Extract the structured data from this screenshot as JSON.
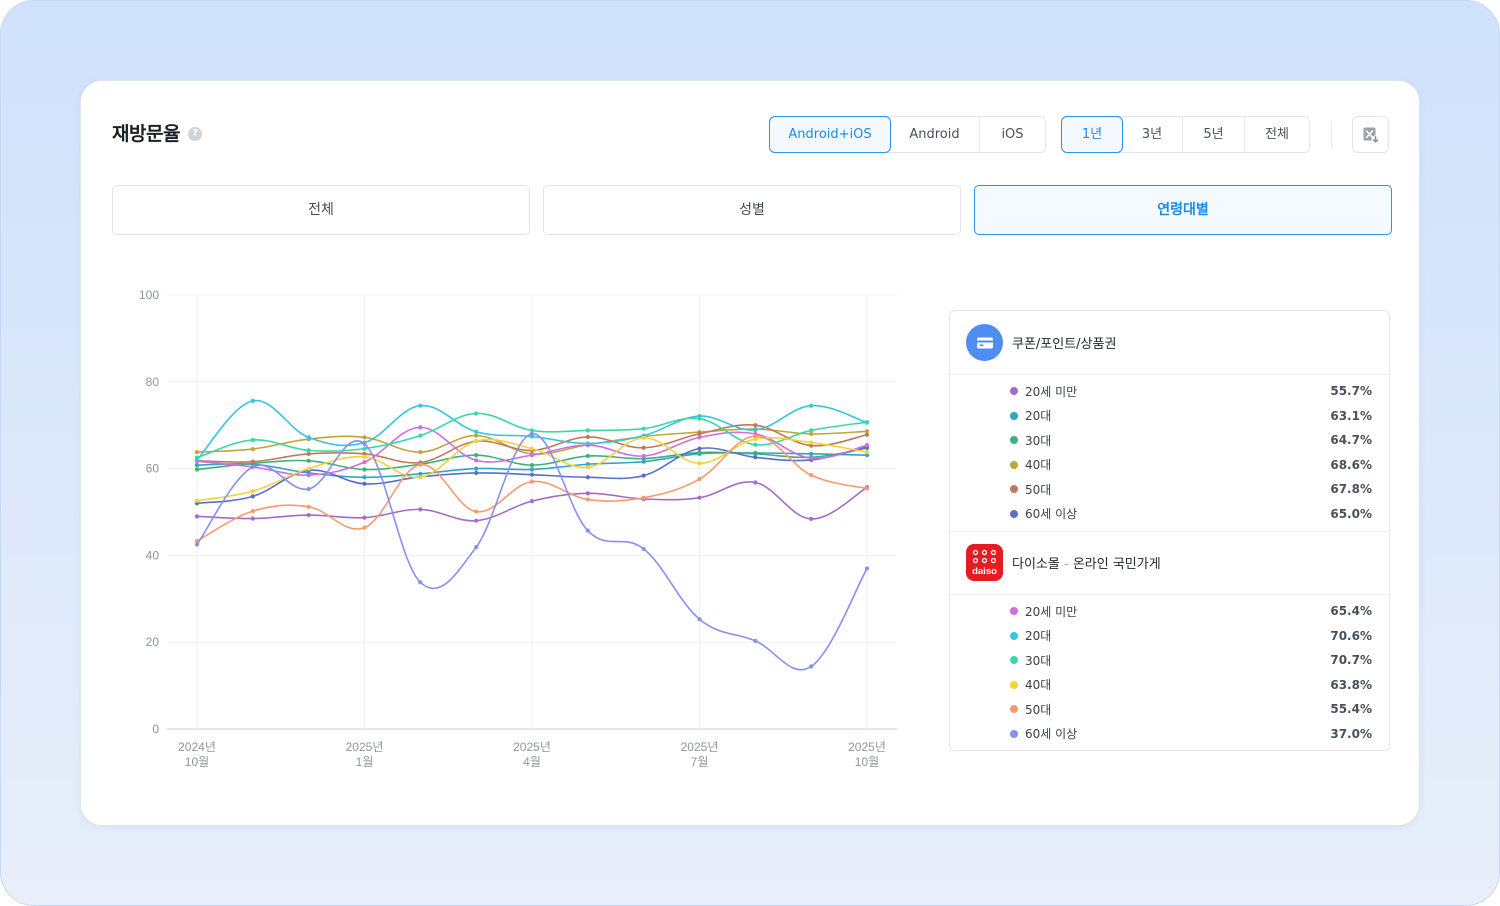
{
  "title": "재방문율",
  "help_glyph": "?",
  "platform_options": [
    "Android+iOS",
    "Android",
    "iOS"
  ],
  "period_options": [
    "1년",
    "3년",
    "5년",
    "전체"
  ],
  "tabs": [
    "전체",
    "성별",
    "연령대별"
  ],
  "legend": {
    "apps": [
      {
        "name": "쿠폰/포인트/상품권",
        "icon": "credit-card-icon",
        "rows": [
          {
            "label": "20세 미만",
            "value": "55.7%",
            "color": "#a66ac9"
          },
          {
            "label": "20대",
            "value": "63.1%",
            "color": "#2fa6c4"
          },
          {
            "label": "30대",
            "value": "64.7%",
            "color": "#3fb07c"
          },
          {
            "label": "40대",
            "value": "68.6%",
            "color": "#c2a53a"
          },
          {
            "label": "50대",
            "value": "67.8%",
            "color": "#c0785a"
          },
          {
            "label": "60세 이상",
            "value": "65.0%",
            "color": "#5b6ec9"
          }
        ]
      },
      {
        "name_main": "다이소몰",
        "name_sep": " - ",
        "name_sub": "온라인 국민가게",
        "icon": "daiso-logo-icon",
        "logo_text": "daiso",
        "rows": [
          {
            "label": "20세 미만",
            "value": "65.4%",
            "color": "#d06de3"
          },
          {
            "label": "20대",
            "value": "70.6%",
            "color": "#36c4e0"
          },
          {
            "label": "30대",
            "value": "70.7%",
            "color": "#3ad8a7"
          },
          {
            "label": "40대",
            "value": "63.8%",
            "color": "#f3d23c"
          },
          {
            "label": "50대",
            "value": "55.4%",
            "color": "#f79a6e"
          },
          {
            "label": "60세 이상",
            "value": "37.0%",
            "color": "#8790f0"
          }
        ]
      }
    ]
  },
  "chart_data": {
    "type": "line",
    "x_labels": [
      [
        "2024년",
        "10월"
      ],
      [
        "2025년",
        "1월"
      ],
      [
        "2025년",
        "4월"
      ],
      [
        "2025년",
        "7월"
      ],
      [
        "2025년",
        "10월"
      ]
    ],
    "x_label_index": [
      0,
      3,
      6,
      9,
      12
    ],
    "yticks": [
      0,
      20,
      40,
      60,
      80,
      100
    ],
    "ylim": [
      0,
      100
    ],
    "grid": true,
    "series": [
      {
        "name": "20세 미만",
        "color": "#a66ac9",
        "values": [
          49.0,
          48.5,
          49.3,
          48.7,
          50.6,
          48.0,
          52.5,
          54.3,
          53.0,
          53.3,
          56.8,
          48.4,
          55.7
        ]
      },
      {
        "name": "20대",
        "color": "#2fa6c4",
        "values": [
          60.8,
          61.0,
          59.0,
          58.0,
          58.8,
          60.0,
          59.8,
          61.0,
          61.6,
          63.4,
          63.6,
          63.4,
          63.1
        ]
      },
      {
        "name": "30대",
        "color": "#3fb07c",
        "values": [
          59.8,
          61.2,
          61.8,
          59.8,
          61.0,
          63.1,
          60.8,
          62.9,
          62.3,
          63.7,
          63.4,
          62.6,
          64.7
        ]
      },
      {
        "name": "40대",
        "color": "#c2a53a",
        "values": [
          63.8,
          64.5,
          66.8,
          67.2,
          63.8,
          67.6,
          63.4,
          65.5,
          67.4,
          68.4,
          69.1,
          68.0,
          68.6
        ]
      },
      {
        "name": "50대",
        "color": "#c0785a",
        "values": [
          61.8,
          61.6,
          63.4,
          63.4,
          61.4,
          66.3,
          64.2,
          67.3,
          64.8,
          68.0,
          70.0,
          65.3,
          67.8
        ]
      },
      {
        "name": "60세 이상",
        "color": "#5b6ec9",
        "values": [
          52.0,
          53.6,
          59.6,
          56.5,
          58.1,
          59.0,
          58.6,
          58.0,
          58.4,
          64.6,
          62.6,
          62.0,
          65.0
        ]
      },
      {
        "name": "20세 미만",
        "color": "#d06de3",
        "values": [
          61.7,
          60.4,
          58.5,
          61.5,
          69.5,
          61.9,
          63.1,
          65.4,
          62.9,
          67.2,
          68.0,
          62.4,
          65.4
        ]
      },
      {
        "name": "20대",
        "color": "#36c4e0",
        "values": [
          62.0,
          75.6,
          67.2,
          66.0,
          74.5,
          68.5,
          67.4,
          65.8,
          67.6,
          72.1,
          68.9,
          74.5,
          70.6
        ]
      },
      {
        "name": "30대",
        "color": "#3ad8a7",
        "values": [
          62.5,
          66.6,
          64.2,
          64.6,
          67.6,
          72.7,
          68.8,
          68.8,
          69.2,
          71.5,
          65.5,
          68.8,
          70.7
        ]
      },
      {
        "name": "40대",
        "color": "#f3d23c",
        "values": [
          52.6,
          54.8,
          60.0,
          62.7,
          58.0,
          66.3,
          64.6,
          60.3,
          67.1,
          61.2,
          66.8,
          66.0,
          63.8
        ]
      },
      {
        "name": "50대",
        "color": "#f79a6e",
        "values": [
          43.3,
          50.2,
          51.2,
          46.4,
          60.9,
          50.1,
          57.0,
          52.9,
          53.3,
          57.6,
          67.5,
          58.5,
          55.4
        ]
      },
      {
        "name": "60세 이상",
        "color": "#8790f0",
        "values": [
          42.5,
          60.4,
          55.3,
          65.7,
          33.8,
          41.9,
          68.0,
          45.7,
          41.5,
          25.3,
          20.3,
          14.4,
          37.0
        ]
      }
    ]
  }
}
